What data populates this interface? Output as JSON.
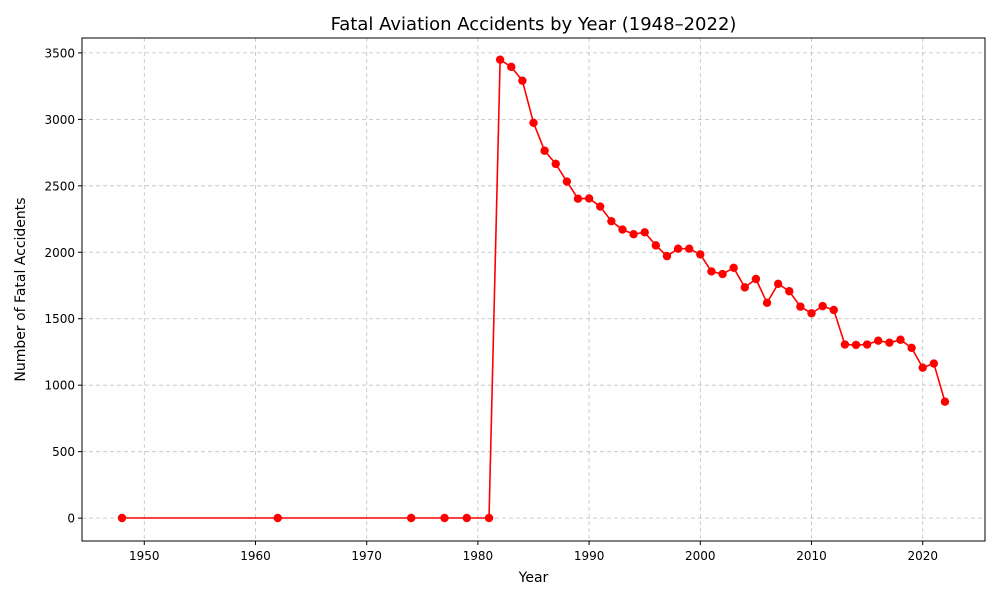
{
  "chart_data": {
    "type": "line",
    "title": "Fatal Aviation Accidents by Year (1948–2022)",
    "xlabel": "Year",
    "ylabel": "Number of Fatal Accidents",
    "xlim": [
      1944.4,
      2025.6
    ],
    "ylim": [
      -172,
      3612
    ],
    "xticks": [
      1950,
      1960,
      1970,
      1980,
      1990,
      2000,
      2010,
      2020
    ],
    "yticks": [
      0,
      500,
      1000,
      1500,
      2000,
      2500,
      3000,
      3500
    ],
    "grid": true,
    "color": "#ff0000",
    "marker": "circle",
    "series": [
      {
        "x": [
          1948,
          1962,
          1974,
          1977,
          1979,
          1981,
          1982,
          1983,
          1984,
          1985,
          1986,
          1987,
          1988,
          1989,
          1990,
          1991,
          1992,
          1993,
          1994,
          1995,
          1996,
          1997,
          1998,
          1999,
          2000,
          2001,
          2002,
          2003,
          2004,
          2005,
          2006,
          2007,
          2008,
          2009,
          2010,
          2011,
          2012,
          2013,
          2014,
          2015,
          2016,
          2017,
          2018,
          2019,
          2020,
          2021,
          2022
        ],
        "values": [
          1,
          1,
          1,
          1,
          1,
          1,
          3449,
          3395,
          3291,
          2974,
          2764,
          2665,
          2532,
          2403,
          2405,
          2344,
          2234,
          2171,
          2136,
          2150,
          2052,
          1971,
          2027,
          2027,
          1984,
          1856,
          1836,
          1883,
          1736,
          1799,
          1620,
          1763,
          1707,
          1591,
          1541,
          1595,
          1566,
          1306,
          1303,
          1306,
          1335,
          1320,
          1342,
          1281,
          1132,
          1163,
          876
        ]
      }
    ]
  }
}
